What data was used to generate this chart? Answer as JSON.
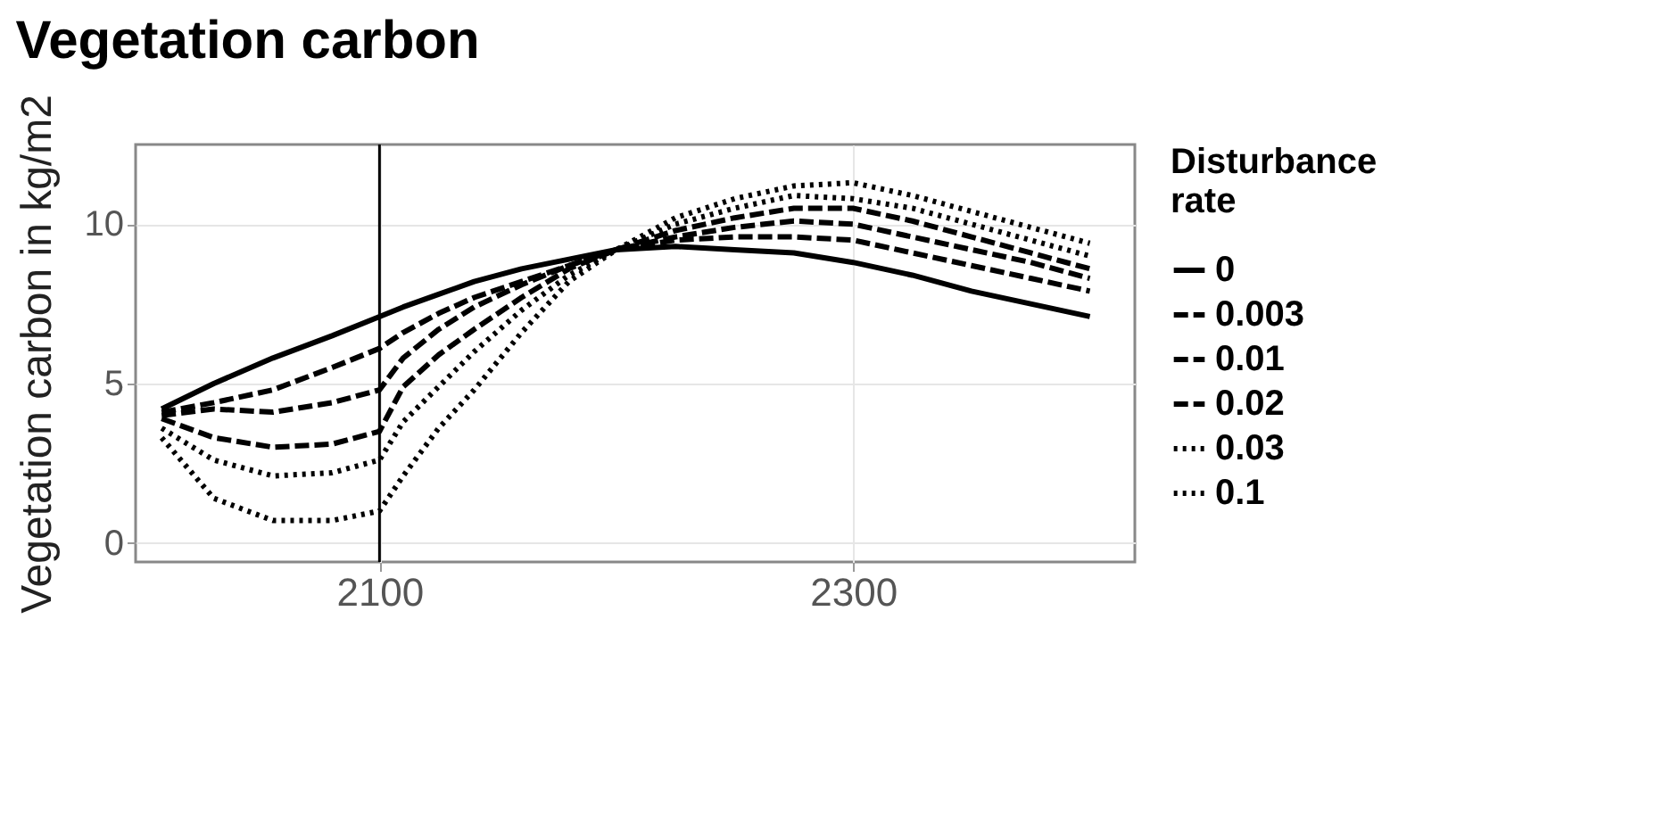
{
  "chart_data": {
    "type": "line",
    "title": "Vegetation carbon",
    "ylabel": "Vegetation carbon in kg/m2",
    "legend_title": "Disturbance rate",
    "legend": "right",
    "grid": true,
    "x": [
      2008,
      2030,
      2055,
      2080,
      2100,
      2110,
      2125,
      2140,
      2160,
      2180,
      2200,
      2225,
      2250,
      2275,
      2300,
      2325,
      2350,
      2375,
      2400
    ],
    "series": [
      {
        "name": "0",
        "color": "#000000",
        "line_style": "solid",
        "values": [
          4.2,
          5.0,
          5.8,
          6.5,
          7.1,
          7.4,
          7.8,
          8.2,
          8.6,
          8.9,
          9.2,
          9.3,
          9.2,
          9.1,
          8.8,
          8.4,
          7.9,
          7.5,
          7.1
        ]
      },
      {
        "name": "0.003",
        "color": "#000000",
        "line_style": "dashed",
        "values": [
          4.1,
          4.4,
          4.8,
          5.5,
          6.1,
          6.6,
          7.2,
          7.7,
          8.2,
          8.7,
          9.2,
          9.5,
          9.6,
          9.6,
          9.5,
          9.1,
          8.7,
          8.3,
          7.9
        ]
      },
      {
        "name": "0.01",
        "color": "#000000",
        "line_style": "dashed",
        "values": [
          4.0,
          4.2,
          4.1,
          4.4,
          4.8,
          5.8,
          6.7,
          7.4,
          8.1,
          8.7,
          9.2,
          9.6,
          9.9,
          10.1,
          10.0,
          9.6,
          9.2,
          8.8,
          8.3
        ]
      },
      {
        "name": "0.02",
        "color": "#000000",
        "line_style": "dashed",
        "values": [
          3.9,
          3.3,
          3.0,
          3.1,
          3.5,
          4.9,
          5.9,
          6.7,
          7.7,
          8.6,
          9.2,
          9.8,
          10.2,
          10.5,
          10.5,
          10.1,
          9.6,
          9.1,
          8.6
        ]
      },
      {
        "name": "0.03",
        "color": "#000000",
        "line_style": "dotted",
        "values": [
          3.6,
          2.6,
          2.1,
          2.2,
          2.6,
          3.8,
          4.9,
          6.0,
          7.3,
          8.4,
          9.2,
          10.0,
          10.5,
          10.9,
          10.8,
          10.5,
          10.0,
          9.5,
          9.0
        ]
      },
      {
        "name": "0.1",
        "color": "#000000",
        "line_style": "dotted",
        "values": [
          3.3,
          1.4,
          0.7,
          0.7,
          1.0,
          2.1,
          3.6,
          4.8,
          6.6,
          8.2,
          9.2,
          10.2,
          10.8,
          11.2,
          11.3,
          10.9,
          10.4,
          9.9,
          9.4
        ]
      }
    ],
    "xlim": [
      1997,
      2419
    ],
    "xticks": [
      2100,
      2300
    ],
    "ylim": [
      -0.6,
      12.5
    ],
    "yticks": [
      0,
      5,
      10
    ],
    "ref_lines": [
      {
        "axis": "x",
        "value": 2100,
        "color": "#000000"
      }
    ]
  }
}
